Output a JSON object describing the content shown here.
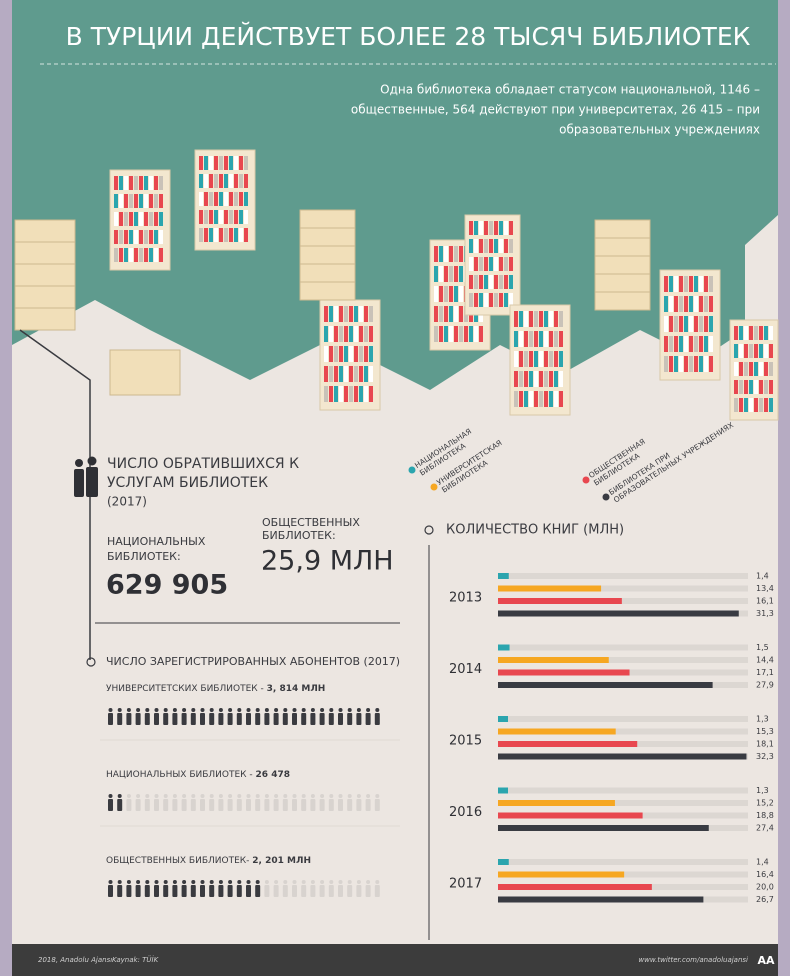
{
  "header": {
    "title": "В ТУРЦИИ ДЕЙСТВУЕТ БОЛЕЕ 28 ТЫСЯЧ БИБЛИОТЕК",
    "subtitle": [
      "Одна библиотека обладает статусом национальной, 1146 –",
      "общественные, 564 действуют при университетах, 26 415 – при",
      "образовательных учреждениях"
    ]
  },
  "visitors": {
    "title": [
      "ЧИСЛО ОБРАТИВШИХСЯ К",
      "УСЛУГАМ БИБЛИОТЕК"
    ],
    "year": "(2017)",
    "national_label": [
      "НАЦИОНАЛЬНЫХ",
      "БИБЛИОТЕК:"
    ],
    "national_value": "629 905",
    "public_label": [
      "ОБЩЕСТВЕННЫХ",
      "БИБЛИОТЕК:"
    ],
    "public_value": "25,9 МЛН"
  },
  "subscribers": {
    "title": "ЧИСЛО ЗАРЕГИСТРИРОВАННЫХ АБОНЕНТОВ  (2017)",
    "items": [
      {
        "label": "УНИВЕРСИТЕТСКИХ БИБЛИОТЕК - ",
        "value": "3, 814 МЛН"
      },
      {
        "label": "НАЦИОНАЛЬНЫХ БИБЛИОТЕК - ",
        "value": "26 478"
      },
      {
        "label": "ОБЩЕСТВЕННЫХ БИБЛИОТЕК- ",
        "value": "2, 201 МЛН"
      }
    ]
  },
  "chart_data": {
    "type": "hbar",
    "title": "КОЛИЧЕСТВО КНИГ (МЛН)",
    "categories": [
      "2013",
      "2014",
      "2015",
      "2016",
      "2017"
    ],
    "xlim": [
      0,
      32.5
    ],
    "series": [
      {
        "name": "НАЦИОНАЛЬНАЯ БИБЛИОТЕКА",
        "color": "#2ba5ae",
        "values": [
          1.4,
          1.5,
          1.3,
          1.3,
          1.4
        ],
        "value_labels": [
          "1,4",
          "1,5",
          "1,3",
          "1,3",
          "1,4"
        ]
      },
      {
        "name": "УНИВЕРСИТЕТСКАЯ БИБЛИОТЕКА",
        "color": "#f6a722",
        "values": [
          13.4,
          14.4,
          15.3,
          15.2,
          16.4
        ],
        "value_labels": [
          "13,4",
          "14,4",
          "15,3",
          "15,2",
          "16,4"
        ]
      },
      {
        "name": "ОБЩЕСТВЕННАЯ БИБЛИОТЕКА",
        "color": "#e8474f",
        "values": [
          16.1,
          17.1,
          18.1,
          18.8,
          20.0
        ],
        "value_labels": [
          "16,1",
          "17,1",
          "18,1",
          "18,8",
          "20,0"
        ]
      },
      {
        "name": "БИБЛИОТЕКА ПРИ ОБРАЗОВАТЕЛЬНЫХ УЧРЕЖДЕНИЯХ",
        "color": "#393b42",
        "values": [
          31.3,
          27.9,
          32.3,
          27.4,
          26.7
        ],
        "value_labels": [
          "31,3",
          "27,9",
          "32,3",
          "27,4",
          "26,7"
        ]
      }
    ]
  },
  "footer": {
    "left": [
      "2018, Anadolu Ajansı",
      "Kaynak: TÜİK"
    ],
    "right": "www.twitter.com/anadoluajansi",
    "logo": "AA"
  }
}
